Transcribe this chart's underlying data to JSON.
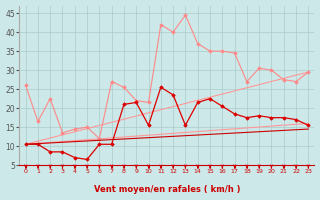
{
  "title": "",
  "xlabel": "Vent moyen/en rafales ( km/h )",
  "background_color": "#cce8e8",
  "grid_color": "#aacccc",
  "x_ticks": [
    0,
    1,
    2,
    3,
    4,
    5,
    6,
    7,
    8,
    9,
    10,
    11,
    12,
    13,
    14,
    15,
    16,
    17,
    18,
    19,
    20,
    21,
    22,
    23
  ],
  "ylim": [
    5,
    47
  ],
  "xlim": [
    -0.5,
    23.5
  ],
  "yticks": [
    5,
    10,
    15,
    20,
    25,
    30,
    35,
    40,
    45
  ],
  "series": [
    {
      "name": "straight_line_low",
      "color": "#ff9999",
      "linewidth": 0.8,
      "marker": null,
      "linestyle": "-",
      "data_x": [
        0,
        23
      ],
      "data_y": [
        10.5,
        16.0
      ]
    },
    {
      "name": "straight_line_mid",
      "color": "#ff9999",
      "linewidth": 0.8,
      "marker": null,
      "linestyle": "-",
      "data_x": [
        0,
        23
      ],
      "data_y": [
        10.5,
        29.5
      ]
    },
    {
      "name": "line_pink_with_markers",
      "color": "#ff8888",
      "linewidth": 0.8,
      "marker": "D",
      "markersize": 1.8,
      "linestyle": "-",
      "data_x": [
        0,
        1,
        2,
        3,
        4,
        5,
        6,
        7,
        8,
        9,
        10,
        11,
        12,
        13,
        14,
        15,
        16,
        17,
        18,
        19,
        20,
        21,
        22,
        23
      ],
      "data_y": [
        26.0,
        16.5,
        22.5,
        13.5,
        14.5,
        15.0,
        12.0,
        27.0,
        25.5,
        22.0,
        21.5,
        42.0,
        40.0,
        44.5,
        37.0,
        35.0,
        35.0,
        34.5,
        27.0,
        30.5,
        30.0,
        27.5,
        27.0,
        29.5
      ]
    },
    {
      "name": "line_red_with_markers",
      "color": "#dd0000",
      "linewidth": 0.9,
      "marker": "D",
      "markersize": 1.8,
      "linestyle": "-",
      "data_x": [
        0,
        1,
        2,
        3,
        4,
        5,
        6,
        7,
        8,
        9,
        10,
        11,
        12,
        13,
        14,
        15,
        16,
        17,
        18,
        19,
        20,
        21,
        22,
        23
      ],
      "data_y": [
        10.5,
        10.5,
        8.5,
        8.5,
        7.0,
        6.5,
        10.5,
        10.5,
        21.0,
        21.5,
        15.5,
        25.5,
        23.5,
        15.5,
        21.5,
        22.5,
        20.5,
        18.5,
        17.5,
        18.0,
        17.5,
        17.5,
        17.0,
        15.5
      ]
    },
    {
      "name": "straight_dark_low",
      "color": "#cc0000",
      "linewidth": 0.8,
      "marker": null,
      "linestyle": "-",
      "data_x": [
        0,
        23
      ],
      "data_y": [
        10.5,
        14.5
      ]
    }
  ],
  "arrow_color": "#cc0000",
  "xlabel_color": "#cc0000",
  "xlabel_fontsize": 6.0,
  "tick_fontsize_x": 4.5,
  "tick_fontsize_y": 5.5
}
